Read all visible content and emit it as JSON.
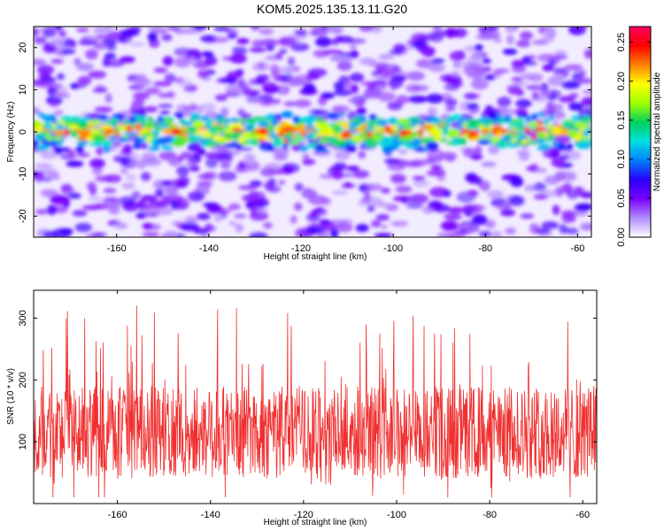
{
  "title": "KOM5.2025.135.13.11.G20",
  "chart_data": [
    {
      "type": "heatmap",
      "xlabel": "Height of straight line (km)",
      "ylabel": "Frequency (Hz)",
      "xlim": [
        -178,
        -57
      ],
      "ylim": [
        -25,
        25
      ],
      "xticks": [
        -160,
        -140,
        -120,
        -100,
        -80,
        -60
      ],
      "yticks": [
        -20,
        -10,
        0,
        10,
        20
      ],
      "x_tick_labels": [
        "-160",
        "-140",
        "-120",
        "-100",
        "-80",
        "-60"
      ],
      "y_tick_labels": [
        "-20",
        "-10",
        "0",
        "10",
        "20"
      ],
      "colorbar": {
        "label": "Normalized spectral amplitude",
        "range": [
          0,
          0.27
        ],
        "ticks": [
          0,
          0.05,
          0.1,
          0.15,
          0.2,
          0.25
        ],
        "tick_labels": [
          "0.00",
          "0.05",
          "0.10",
          "0.15",
          "0.20",
          "0.25"
        ],
        "colors": [
          "#ffffff",
          "#b48cff",
          "#7a00ff",
          "#2a00ff",
          "#0080ff",
          "#00e0e0",
          "#00d060",
          "#a0ff00",
          "#ffff00",
          "#ff8000",
          "#ff0000",
          "#ff0060"
        ]
      },
      "signal_band": {
        "center_frequency": 0,
        "half_width": 4,
        "peak_amplitude": 0.26
      }
    },
    {
      "type": "line",
      "xlabel": "Height of straight line (km)",
      "ylabel": "SNR (10 * v/v)",
      "xlim": [
        -178,
        -57
      ],
      "ylim": [
        0,
        345
      ],
      "xticks": [
        -160,
        -140,
        -120,
        -100,
        -80,
        -60
      ],
      "yticks": [
        100,
        200,
        300
      ],
      "x_tick_labels": [
        "-160",
        "-140",
        "-120",
        "-100",
        "-80",
        "-60"
      ],
      "y_tick_labels": [
        "100",
        "200",
        "300"
      ],
      "series": [
        {
          "color": "#f03030",
          "mean": 115,
          "min": 10,
          "max": 340
        }
      ]
    }
  ]
}
